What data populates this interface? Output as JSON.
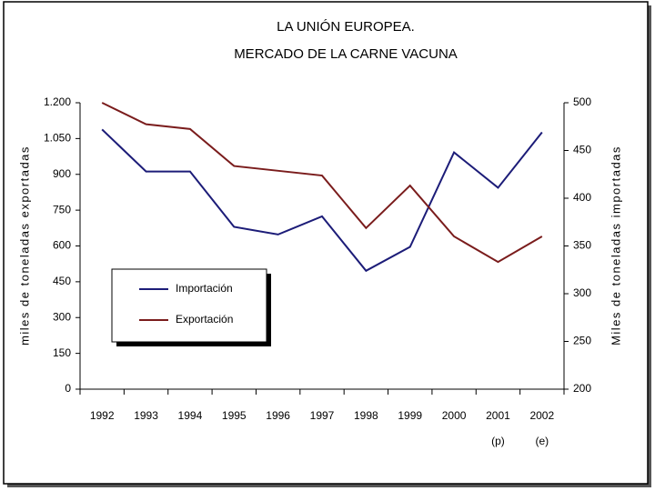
{
  "chart_data": {
    "type": "line",
    "title": [
      "LA UNIÓN EUROPEA.",
      "MERCADO DE LA CARNE VACUNA"
    ],
    "categories": [
      "1992",
      "1993",
      "1994",
      "1995",
      "1996",
      "1997",
      "1998",
      "1999",
      "2000",
      "2001",
      "2002"
    ],
    "category_sublabels": [
      null,
      null,
      null,
      null,
      null,
      null,
      null,
      null,
      null,
      "(p)",
      "(e)"
    ],
    "series": [
      {
        "name": "Importación",
        "color": "#1c1c78",
        "axis": "y2",
        "values": [
          472,
          428,
          428,
          370,
          362,
          381,
          324,
          349,
          448,
          411,
          469
        ]
      },
      {
        "name": "Exportación",
        "color": "#7a1c1c",
        "values": [
          1200,
          1110,
          1090,
          935,
          915,
          895,
          675,
          853,
          640,
          533,
          640
        ]
      }
    ],
    "ylabel": "miles de toneladas exportadas",
    "y2label": "Miles de toneladas importadas",
    "ylim": [
      0,
      1200
    ],
    "yticks": [
      0,
      150,
      300,
      450,
      600,
      750,
      900,
      {
        "value": 1050,
        "label": "1.050"
      },
      {
        "value": 1200,
        "label": "1.200"
      }
    ],
    "y2lim": [
      200,
      500
    ],
    "y2ticks": [
      200,
      250,
      300,
      350,
      400,
      450,
      500
    ],
    "grid": false,
    "legend": "lower left"
  }
}
